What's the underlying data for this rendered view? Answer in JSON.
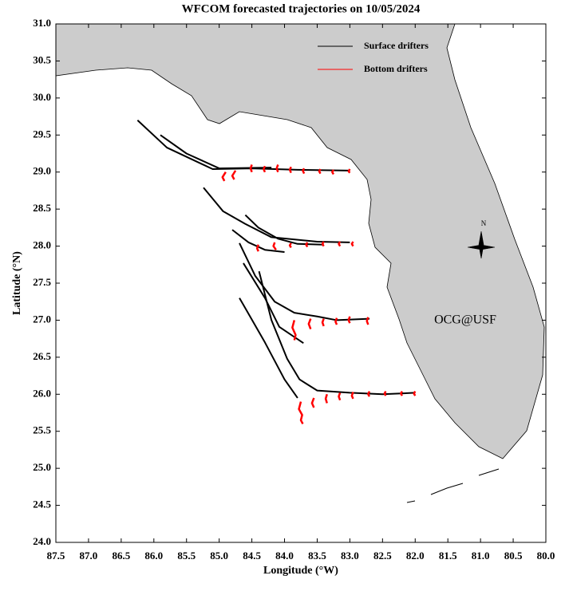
{
  "chart_data": {
    "type": "trajectory",
    "title": "WFCOM forecasted trajectories on 10/05/2024",
    "x_label": "Longitude (°W)",
    "y_label": "Latitude (°N)",
    "annotation": "OCG@USF",
    "annotation_color": "#ff0000",
    "compass_label": "N",
    "xlim": [
      87.5,
      80.0
    ],
    "ylim": [
      24.0,
      31.0
    ],
    "xticks": [
      87.5,
      {
        "value": 87,
        "label": "87.0"
      },
      86.5,
      {
        "value": 86,
        "label": "86.0"
      },
      85.5,
      {
        "value": 85,
        "label": "85.0"
      },
      84.5,
      {
        "value": 84,
        "label": "84.0"
      },
      83.5,
      {
        "value": 83,
        "label": "83.0"
      },
      82.5,
      {
        "value": 82,
        "label": "82.0"
      },
      81.5,
      {
        "value": 81,
        "label": "81.0"
      },
      80.5,
      {
        "value": 80,
        "label": "80.0"
      }
    ],
    "yticks": [
      {
        "value": 24,
        "label": "24.0"
      },
      24.5,
      {
        "value": 25,
        "label": "25.0"
      },
      25.5,
      {
        "value": 26,
        "label": "26.0"
      },
      26.5,
      {
        "value": 27,
        "label": "27.0"
      },
      27.5,
      {
        "value": 28,
        "label": "28.0"
      },
      28.5,
      {
        "value": 29,
        "label": "29.0"
      },
      29.5,
      {
        "value": 30,
        "label": "30.0"
      },
      30.5,
      {
        "value": 31,
        "label": "31.0"
      }
    ],
    "series": [
      {
        "name": "Surface drifters",
        "color": "#000000",
        "tracks": [
          {
            "x": [
              86.25,
              85.8,
              85.1,
              84.5,
              83.8,
              83.0
            ],
            "y": [
              29.7,
              29.33,
              29.04,
              29.05,
              29.03,
              29.02
            ]
          },
          {
            "x": [
              85.9,
              85.5,
              85.0,
              84.2
            ],
            "y": [
              29.5,
              29.25,
              29.05,
              29.06
            ]
          },
          {
            "x": [
              85.24,
              84.94,
              84.6,
              84.2,
              83.5,
              83.0
            ],
            "y": [
              28.79,
              28.47,
              28.3,
              28.12,
              28.06,
              28.05
            ]
          },
          {
            "x": [
              84.6,
              84.4,
              84.1,
              83.8,
              83.4
            ],
            "y": [
              28.42,
              28.25,
              28.1,
              28.03,
              28.02
            ]
          },
          {
            "x": [
              84.8,
              84.55,
              84.3,
              84.0
            ],
            "y": [
              28.22,
              28.05,
              27.95,
              27.92
            ]
          },
          {
            "x": [
              84.69,
              84.45,
              84.15,
              83.85,
              83.5,
              83.2,
              82.7
            ],
            "y": [
              28.04,
              27.6,
              27.25,
              27.1,
              27.05,
              27.0,
              27.02
            ]
          },
          {
            "x": [
              84.63,
              84.3,
              84.08,
              83.71
            ],
            "y": [
              27.77,
              27.3,
              26.91,
              26.69
            ]
          },
          {
            "x": [
              84.39,
              84.2,
              83.96,
              83.77,
              83.5,
              83.0,
              82.5,
              82.0
            ],
            "y": [
              27.66,
              27.0,
              26.48,
              26.2,
              26.05,
              26.02,
              26.0,
              26.02
            ]
          },
          {
            "x": [
              84.69,
              84.3,
              84.0,
              83.8
            ],
            "y": [
              27.3,
              26.7,
              26.2,
              25.95
            ]
          }
        ]
      },
      {
        "name": "Bottom drifters",
        "color": "#ff0000",
        "tracks": [
          {
            "x": [
              84.9,
              84.95,
              84.92
            ],
            "y": [
              29.0,
              28.93,
              28.88
            ]
          },
          {
            "x": [
              84.75,
              84.8,
              84.77
            ],
            "y": [
              29.02,
              28.95,
              28.9
            ]
          },
          {
            "x": [
              84.5,
              84.52,
              84.5
            ],
            "y": [
              29.1,
              29.05,
              29.0
            ]
          },
          {
            "x": [
              84.3,
              84.32,
              84.3
            ],
            "y": [
              29.08,
              29.04,
              29.0
            ]
          },
          {
            "x": [
              84.1,
              84.12,
              84.1
            ],
            "y": [
              29.1,
              29.05,
              29.0
            ]
          },
          {
            "x": [
              83.9,
              83.92,
              83.9
            ],
            "y": [
              29.07,
              29.03,
              28.99
            ]
          },
          {
            "x": [
              83.7,
              83.72,
              83.7
            ],
            "y": [
              29.05,
              29.02,
              28.98
            ]
          },
          {
            "x": [
              83.45,
              83.47,
              83.45
            ],
            "y": [
              29.04,
              29.01,
              28.98
            ]
          },
          {
            "x": [
              83.25,
              83.27,
              83.25
            ],
            "y": [
              29.03,
              29.0,
              28.97
            ]
          },
          {
            "x": [
              83.0,
              83.02,
              83.0
            ],
            "y": [
              29.04,
              29.01,
              28.99
            ]
          },
          {
            "x": [
              84.4,
              84.42,
              84.4
            ],
            "y": [
              28.02,
              27.97,
              27.93
            ]
          },
          {
            "x": [
              84.15,
              84.17,
              84.13
            ],
            "y": [
              28.05,
              28.0,
              27.95
            ]
          },
          {
            "x": [
              83.9,
              83.92,
              83.9
            ],
            "y": [
              28.04,
              28.01,
              27.98
            ]
          },
          {
            "x": [
              83.65,
              83.67,
              83.65
            ],
            "y": [
              28.05,
              28.02,
              27.99
            ]
          },
          {
            "x": [
              83.4,
              83.42,
              83.4
            ],
            "y": [
              28.06,
              28.03,
              28.0
            ]
          },
          {
            "x": [
              83.15,
              83.17,
              83.15
            ],
            "y": [
              28.06,
              28.03,
              28.0
            ]
          },
          {
            "x": [
              82.95,
              82.97,
              82.95
            ],
            "y": [
              28.06,
              28.03,
              28.0
            ]
          },
          {
            "x": [
              83.85,
              83.88,
              83.83,
              83.85
            ],
            "y": [
              27.0,
              26.9,
              26.8,
              26.73
            ]
          },
          {
            "x": [
              83.6,
              83.63,
              83.6
            ],
            "y": [
              27.02,
              26.95,
              26.88
            ]
          },
          {
            "x": [
              83.4,
              83.42,
              83.4
            ],
            "y": [
              27.02,
              26.97,
              26.92
            ]
          },
          {
            "x": [
              83.2,
              83.22,
              83.2
            ],
            "y": [
              27.03,
              26.98,
              26.94
            ]
          },
          {
            "x": [
              83.0,
              83.02,
              83.0
            ],
            "y": [
              27.05,
              27.0,
              26.96
            ]
          },
          {
            "x": [
              82.72,
              82.74,
              82.72
            ],
            "y": [
              27.04,
              26.99,
              26.94
            ]
          },
          {
            "x": [
              83.75,
              83.78,
              83.73,
              83.75,
              83.72
            ],
            "y": [
              25.9,
              25.8,
              25.72,
              25.65,
              25.6
            ]
          },
          {
            "x": [
              83.55,
              83.58,
              83.55
            ],
            "y": [
              25.95,
              25.88,
              25.82
            ]
          },
          {
            "x": [
              83.35,
              83.37,
              83.35
            ],
            "y": [
              26.0,
              25.94,
              25.88
            ]
          },
          {
            "x": [
              83.15,
              83.17,
              83.15
            ],
            "y": [
              26.02,
              25.97,
              25.92
            ]
          },
          {
            "x": [
              82.95,
              82.97,
              82.95
            ],
            "y": [
              26.03,
              25.98,
              25.94
            ]
          },
          {
            "x": [
              82.7,
              82.72,
              82.7
            ],
            "y": [
              26.04,
              26.0,
              25.97
            ]
          },
          {
            "x": [
              82.45,
              82.47,
              82.45
            ],
            "y": [
              26.04,
              26.01,
              25.98
            ]
          },
          {
            "x": [
              82.2,
              82.22,
              82.2
            ],
            "y": [
              26.04,
              26.01,
              25.98
            ]
          },
          {
            "x": [
              82.0,
              82.02,
              82.0
            ],
            "y": [
              26.04,
              26.01,
              25.98
            ]
          }
        ]
      }
    ]
  }
}
